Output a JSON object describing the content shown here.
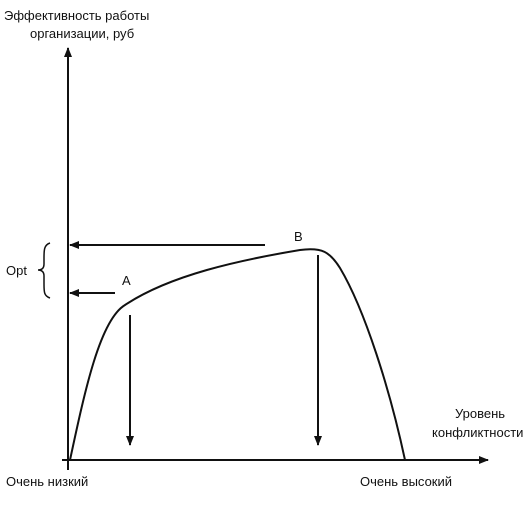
{
  "axes": {
    "y_label": [
      "Эффективность работы",
      "организации, руб"
    ],
    "x_label": [
      "Уровень",
      "конфликтности"
    ],
    "x_low": "Очень низкий",
    "x_high": "Очень высокий"
  },
  "points": {
    "opt": "Opt",
    "a": "A",
    "b": "B"
  }
}
